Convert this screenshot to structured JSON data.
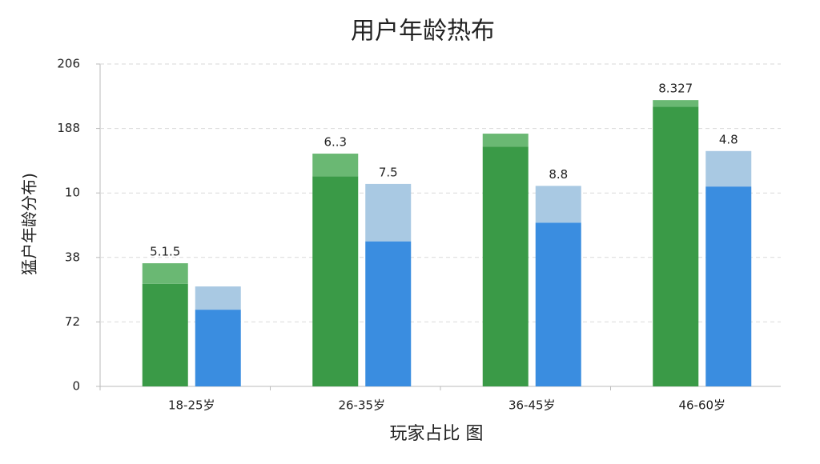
{
  "chart_data": {
    "type": "bar",
    "title": "用户年龄热布",
    "x_label": "玩家占比 图",
    "y_label": "猛户年龄分布)",
    "categories": [
      "18-25岁",
      "26-35岁",
      "36-45岁",
      "46-60岁"
    ],
    "series": [
      {
        "color": "#3a9a47",
        "stack": 0,
        "values": [
          1.59,
          3.26,
          3.72,
          4.34
        ]
      },
      {
        "color": "#6ab873",
        "stack": 0,
        "values": [
          0.32,
          0.35,
          0.2,
          0.1
        ]
      },
      {
        "color": "#3a8de0",
        "stack": 1,
        "values": [
          1.19,
          2.25,
          2.54,
          3.1
        ]
      },
      {
        "color": "#a9c9e3",
        "stack": 1,
        "values": [
          0.36,
          0.89,
          0.57,
          0.55
        ]
      }
    ],
    "annotations": [
      {
        "text": "5.1.5",
        "category": 0,
        "stack": 0
      },
      {
        "text": "6..3",
        "category": 1,
        "stack": 0
      },
      {
        "text": "7.5",
        "category": 1,
        "stack": 1
      },
      {
        "text": "8.8",
        "category": 2,
        "stack": 1
      },
      {
        "text": "8.327",
        "category": 3,
        "stack": 0
      },
      {
        "text": "4.8",
        "category": 3,
        "stack": 1
      }
    ],
    "ylim": [
      0,
      5
    ],
    "yticks": [
      0,
      {
        "value": 1,
        "label": "72"
      },
      {
        "value": 2,
        "label": "38"
      },
      {
        "value": 3,
        "label": "10"
      },
      {
        "value": 4,
        "label": "188"
      },
      {
        "value": 5,
        "label": "206"
      }
    ],
    "grid": true
  }
}
